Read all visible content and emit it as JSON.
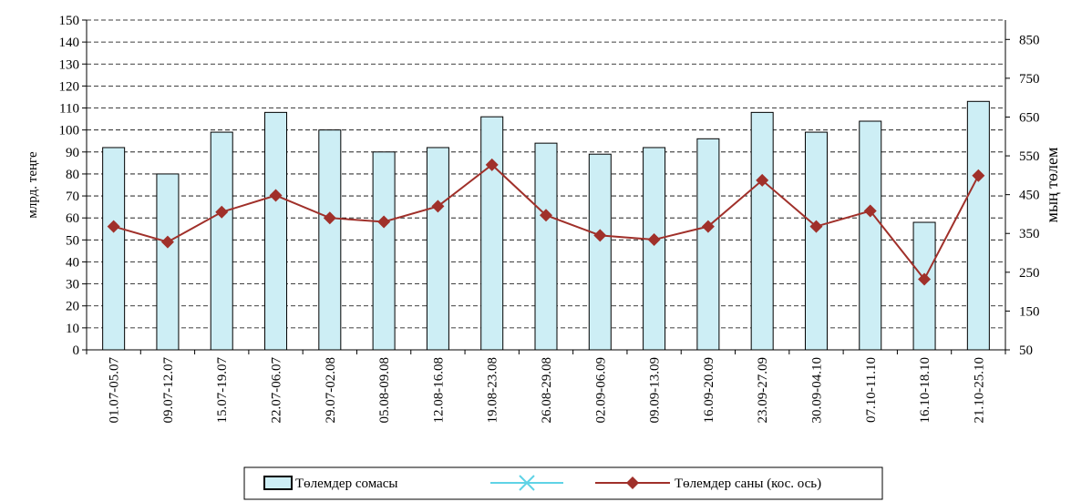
{
  "chart_data": {
    "type": "bar_line",
    "categories": [
      "01.07-05.07",
      "09.07-12.07",
      "15.07-19.07",
      "22.07-06.07",
      "29.07-02.08",
      "05.08-09.08",
      "12.08-16.08",
      "19.08-23.08",
      "26.08-29.08",
      "02.09-06.09",
      "09.09-13.09",
      "16.09-20.09",
      "23.09-27.09",
      "30.09-04.10",
      "07.10-11.10",
      "16.10-18.10",
      "21.10-25.10"
    ],
    "y_label": "млрд. теңге",
    "y2_label": "мың төлем",
    "ylim": [
      0,
      150
    ],
    "yticks": [
      0,
      10,
      20,
      30,
      40,
      50,
      60,
      70,
      80,
      90,
      100,
      110,
      120,
      130,
      140,
      150
    ],
    "y2lim": [
      50,
      900
    ],
    "y2ticks": [
      50,
      150,
      250,
      350,
      450,
      550,
      650,
      750,
      850
    ],
    "grid": true,
    "series": [
      {
        "name": "Төлемдер сомасы",
        "type": "bar",
        "color": "#cdeef5",
        "values": [
          92,
          80,
          99,
          108,
          100,
          90,
          92,
          106,
          94,
          89,
          92,
          96,
          108,
          99,
          104,
          58,
          113
        ]
      },
      {
        "name": "Төлемдер саны (кос. ось)",
        "type": "line",
        "axis": "y2",
        "color": "#a0302a",
        "values": [
          368,
          328,
          405,
          448,
          390,
          380,
          420,
          527,
          397,
          345,
          334,
          368,
          487,
          368,
          408,
          232,
          499
        ]
      }
    ]
  }
}
